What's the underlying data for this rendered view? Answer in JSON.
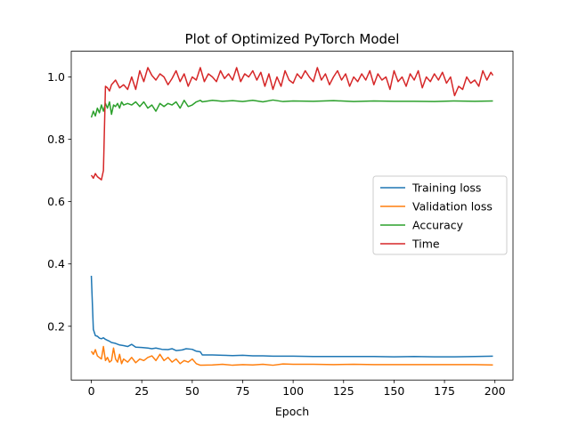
{
  "chart_data": {
    "type": "line",
    "title": "Plot of Optimized PyTorch Model",
    "xlabel": "Epoch",
    "ylabel": "",
    "xlim": [
      -9.95,
      208.95
    ],
    "ylim": [
      0.0275,
      1.0825
    ],
    "x_ticks": [
      0,
      25,
      50,
      75,
      100,
      125,
      150,
      175,
      200
    ],
    "y_ticks": [
      0.2,
      0.4,
      0.6,
      0.8,
      1.0
    ],
    "x_tick_labels": [
      "0",
      "25",
      "50",
      "75",
      "100",
      "125",
      "150",
      "175",
      "200"
    ],
    "y_tick_labels": [
      "0.2",
      "0.4",
      "0.6",
      "0.8",
      "1.0"
    ],
    "legend_position": "center-right",
    "grid": false,
    "series": [
      {
        "name": "Training loss",
        "color": "#1f77b4",
        "x": [
          0,
          1,
          2,
          3,
          4,
          5,
          6,
          7,
          8,
          9,
          10,
          12,
          14,
          16,
          18,
          20,
          22,
          25,
          28,
          30,
          32,
          35,
          38,
          40,
          42,
          45,
          47,
          50,
          52,
          54,
          55,
          60,
          65,
          70,
          75,
          80,
          85,
          90,
          95,
          100,
          110,
          120,
          130,
          140,
          150,
          160,
          170,
          180,
          190,
          199
        ],
        "y": [
          0.362,
          0.19,
          0.17,
          0.168,
          0.162,
          0.16,
          0.163,
          0.158,
          0.155,
          0.152,
          0.148,
          0.145,
          0.14,
          0.138,
          0.135,
          0.142,
          0.133,
          0.132,
          0.13,
          0.128,
          0.13,
          0.126,
          0.125,
          0.128,
          0.122,
          0.124,
          0.128,
          0.126,
          0.12,
          0.118,
          0.108,
          0.108,
          0.107,
          0.106,
          0.107,
          0.105,
          0.105,
          0.104,
          0.104,
          0.104,
          0.103,
          0.103,
          0.103,
          0.103,
          0.102,
          0.103,
          0.102,
          0.102,
          0.103,
          0.104
        ]
      },
      {
        "name": "Validation loss",
        "color": "#ff7f0e",
        "x": [
          0,
          1,
          2,
          3,
          4,
          5,
          6,
          7,
          8,
          9,
          10,
          11,
          12,
          13,
          14,
          15,
          16,
          18,
          20,
          22,
          24,
          26,
          28,
          30,
          32,
          34,
          36,
          38,
          40,
          42,
          44,
          46,
          48,
          50,
          52,
          54,
          55,
          60,
          65,
          70,
          75,
          80,
          85,
          90,
          95,
          100,
          110,
          120,
          130,
          140,
          150,
          160,
          170,
          180,
          190,
          199
        ],
        "y": [
          0.12,
          0.11,
          0.125,
          0.105,
          0.1,
          0.095,
          0.135,
          0.09,
          0.1,
          0.085,
          0.09,
          0.13,
          0.095,
          0.085,
          0.11,
          0.08,
          0.095,
          0.085,
          0.1,
          0.083,
          0.095,
          0.09,
          0.1,
          0.105,
          0.09,
          0.11,
          0.09,
          0.1,
          0.085,
          0.095,
          0.08,
          0.09,
          0.085,
          0.095,
          0.08,
          0.075,
          0.075,
          0.076,
          0.078,
          0.075,
          0.077,
          0.076,
          0.078,
          0.075,
          0.079,
          0.078,
          0.078,
          0.077,
          0.078,
          0.077,
          0.077,
          0.077,
          0.077,
          0.077,
          0.077,
          0.076
        ]
      },
      {
        "name": "Accuracy",
        "color": "#2ca02c",
        "x": [
          0,
          1,
          2,
          3,
          4,
          5,
          6,
          7,
          8,
          9,
          10,
          11,
          12,
          13,
          14,
          15,
          16,
          18,
          20,
          22,
          24,
          26,
          28,
          30,
          32,
          34,
          36,
          38,
          40,
          42,
          44,
          46,
          48,
          50,
          52,
          54,
          55,
          60,
          65,
          70,
          75,
          80,
          85,
          90,
          95,
          100,
          110,
          120,
          130,
          140,
          150,
          160,
          170,
          180,
          190,
          199
        ],
        "y": [
          0.87,
          0.89,
          0.875,
          0.9,
          0.885,
          0.91,
          0.89,
          0.915,
          0.9,
          0.92,
          0.88,
          0.91,
          0.905,
          0.915,
          0.9,
          0.92,
          0.91,
          0.915,
          0.91,
          0.92,
          0.905,
          0.92,
          0.9,
          0.91,
          0.89,
          0.915,
          0.905,
          0.915,
          0.91,
          0.92,
          0.9,
          0.925,
          0.905,
          0.91,
          0.92,
          0.925,
          0.92,
          0.925,
          0.922,
          0.924,
          0.921,
          0.925,
          0.92,
          0.926,
          0.921,
          0.923,
          0.922,
          0.924,
          0.921,
          0.923,
          0.922,
          0.922,
          0.921,
          0.923,
          0.922,
          0.923
        ]
      },
      {
        "name": "Time",
        "color": "#d62728",
        "x": [
          0,
          1,
          2,
          3,
          4,
          5,
          6,
          7,
          8,
          9,
          10,
          12,
          14,
          16,
          18,
          20,
          22,
          24,
          26,
          28,
          30,
          32,
          34,
          36,
          38,
          40,
          42,
          44,
          46,
          48,
          50,
          52,
          54,
          56,
          58,
          60,
          62,
          64,
          66,
          68,
          70,
          72,
          74,
          76,
          78,
          80,
          82,
          84,
          86,
          88,
          90,
          92,
          94,
          96,
          98,
          100,
          102,
          104,
          106,
          108,
          110,
          112,
          114,
          116,
          118,
          120,
          122,
          124,
          126,
          128,
          130,
          132,
          134,
          136,
          138,
          140,
          142,
          144,
          146,
          148,
          150,
          152,
          154,
          156,
          158,
          160,
          162,
          164,
          166,
          168,
          170,
          172,
          174,
          176,
          178,
          180,
          182,
          184,
          186,
          188,
          190,
          192,
          194,
          196,
          198,
          199
        ],
        "y": [
          0.685,
          0.675,
          0.69,
          0.68,
          0.675,
          0.67,
          0.7,
          0.97,
          0.965,
          0.955,
          0.975,
          0.99,
          0.965,
          0.975,
          0.96,
          1.0,
          0.96,
          1.02,
          0.985,
          1.03,
          1.005,
          0.99,
          1.01,
          1.0,
          0.975,
          0.995,
          1.02,
          0.985,
          1.01,
          0.97,
          1.0,
          0.99,
          1.03,
          0.985,
          1.01,
          1.0,
          0.985,
          1.02,
          0.995,
          1.01,
          0.99,
          1.03,
          0.985,
          1.01,
          1.0,
          1.02,
          0.99,
          1.015,
          0.97,
          1.01,
          0.96,
          1.0,
          0.97,
          1.02,
          0.99,
          0.98,
          1.01,
          0.995,
          1.02,
          1.0,
          0.985,
          1.03,
          0.99,
          1.01,
          0.975,
          1.0,
          1.02,
          0.99,
          1.01,
          0.97,
          1.0,
          0.985,
          1.01,
          0.99,
          1.02,
          0.975,
          1.01,
          0.99,
          1.0,
          0.96,
          1.02,
          0.985,
          1.0,
          0.97,
          1.01,
          0.99,
          1.02,
          0.965,
          1.0,
          0.985,
          1.01,
          0.99,
          1.015,
          0.98,
          1.0,
          0.94,
          0.97,
          0.96,
          1.0,
          0.98,
          0.99,
          0.97,
          1.02,
          0.99,
          1.015,
          1.005
        ]
      }
    ]
  }
}
